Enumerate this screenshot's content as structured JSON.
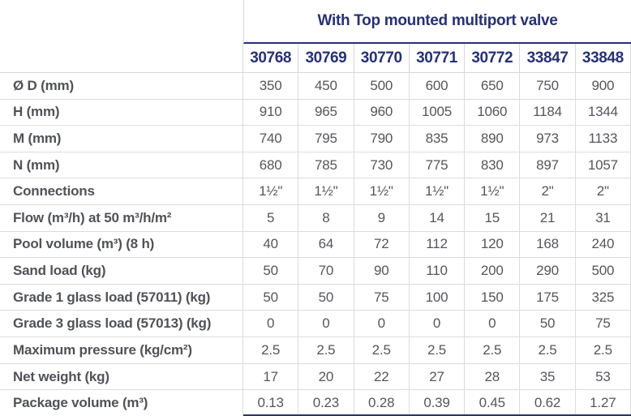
{
  "title": "With Top mounted multiport valve",
  "colors": {
    "accent_navy": "#283173",
    "text_gray": "#55565c",
    "grid_line": "#d7d7da",
    "bottom_rule": "#2e355f"
  },
  "table": {
    "codes": [
      "30768",
      "30769",
      "30770",
      "30771",
      "30772",
      "33847",
      "33848"
    ],
    "rows": [
      {
        "label": "Ø D (mm)",
        "values": [
          "350",
          "450",
          "500",
          "600",
          "650",
          "750",
          "900"
        ]
      },
      {
        "label": "H (mm)",
        "values": [
          "910",
          "965",
          "960",
          "1005",
          "1060",
          "1184",
          "1344"
        ]
      },
      {
        "label": "M (mm)",
        "values": [
          "740",
          "795",
          "790",
          "835",
          "890",
          "973",
          "1133"
        ]
      },
      {
        "label": "N (mm)",
        "values": [
          "680",
          "785",
          "730",
          "775",
          "830",
          "897",
          "1057"
        ]
      },
      {
        "label": "Connections",
        "values": [
          "1½\"",
          "1½\"",
          "1½\"",
          "1½\"",
          "1½\"",
          "2\"",
          "2\""
        ]
      },
      {
        "label": "Flow (m³/h) at 50 m³/h/m²",
        "values": [
          "5",
          "8",
          "9",
          "14",
          "15",
          "21",
          "31"
        ]
      },
      {
        "label": "Pool volume (m³) (8 h)",
        "values": [
          "40",
          "64",
          "72",
          "112",
          "120",
          "168",
          "240"
        ]
      },
      {
        "label": "Sand load (kg)",
        "values": [
          "50",
          "70",
          "90",
          "110",
          "200",
          "290",
          "500"
        ]
      },
      {
        "label": "Grade 1 glass load (57011) (kg)",
        "values": [
          "50",
          "50",
          "75",
          "100",
          "150",
          "175",
          "325"
        ]
      },
      {
        "label": "Grade 3 glass load (57013) (kg)",
        "values": [
          "0",
          "0",
          "0",
          "0",
          "0",
          "50",
          "75"
        ]
      },
      {
        "label": "Maximum pressure (kg/cm²)",
        "values": [
          "2.5",
          "2.5",
          "2.5",
          "2.5",
          "2.5",
          "2.5",
          "2.5"
        ]
      },
      {
        "label": "Net weight (kg)",
        "values": [
          "17",
          "20",
          "22",
          "27",
          "28",
          "35",
          "53"
        ]
      },
      {
        "label": "Package volume (m³)",
        "values": [
          "0.13",
          "0.23",
          "0.28",
          "0.39",
          "0.45",
          "0.62",
          "1.27"
        ]
      }
    ]
  }
}
